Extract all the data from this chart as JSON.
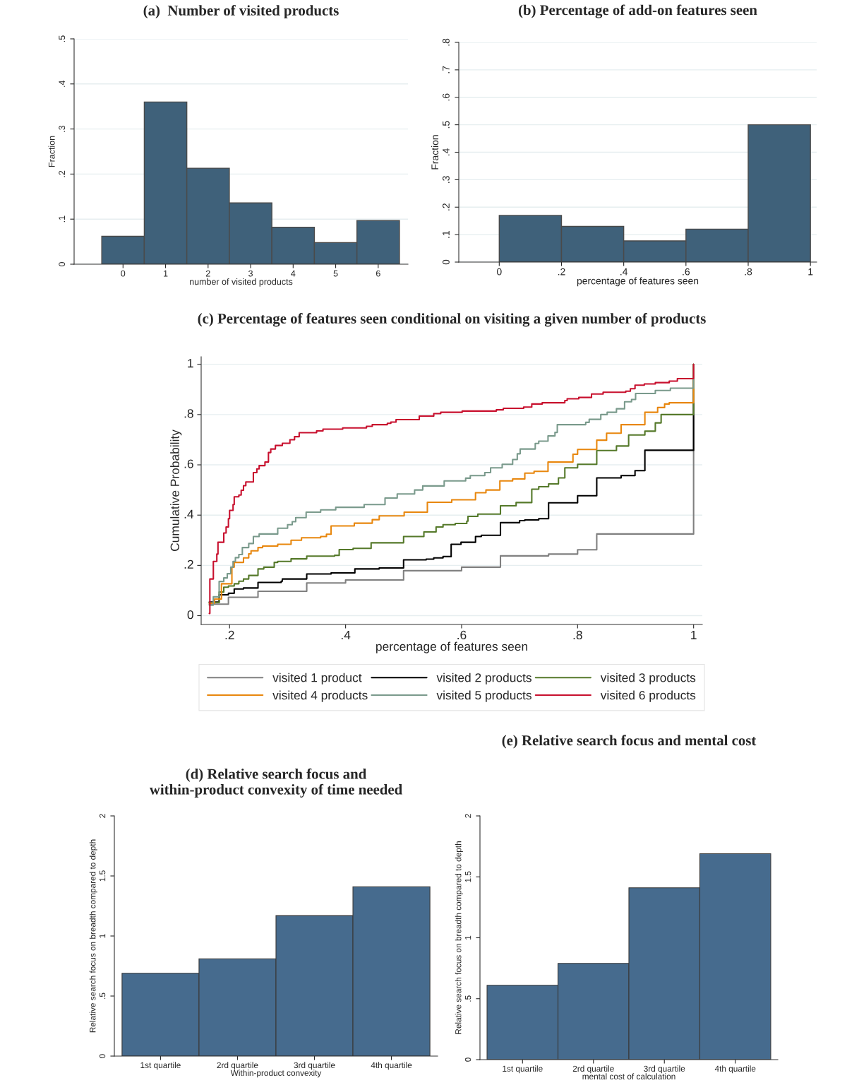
{
  "chart_data": [
    {
      "type": "histogram",
      "title": "(a)  Number of visited products",
      "xlabel": "number of visited products",
      "ylabel": "Fraction",
      "color": "#3f617a",
      "bins": [
        -0.5,
        0.5,
        1.5,
        2.5,
        3.5,
        4.5,
        5.5,
        6.5
      ],
      "values": [
        0.062,
        0.36,
        0.213,
        0.136,
        0.082,
        0.048,
        0.097
      ],
      "xlim": [
        -1.15,
        6.7
      ],
      "xticks": [
        0,
        1,
        2,
        3,
        4,
        5,
        6
      ],
      "ylim": [
        0,
        0.5
      ],
      "yticks": [
        0,
        {
          "value": 0.1,
          "label": ".1"
        },
        {
          "value": 0.2,
          "label": ".2"
        },
        {
          "value": 0.3,
          "label": ".3"
        },
        {
          "value": 0.4,
          "label": ".4"
        },
        {
          "value": 0.5,
          "label": ".5"
        }
      ],
      "grid": "y"
    },
    {
      "type": "histogram",
      "title": "(b) Percentage of add-on features seen",
      "xlabel": "percentage of features seen",
      "ylabel": "Fraction",
      "color": "#3f617a",
      "bins": [
        0,
        0.2,
        0.4,
        0.6,
        0.8,
        1
      ],
      "values": [
        0.17,
        0.13,
        0.077,
        0.12,
        0.5
      ],
      "xlim": [
        -0.13,
        1.02
      ],
      "xticks": [
        0,
        {
          "value": 0.2,
          "label": ".2"
        },
        {
          "value": 0.4,
          "label": ".4"
        },
        {
          "value": 0.6,
          "label": ".6"
        },
        {
          "value": 0.8,
          "label": ".8"
        },
        1
      ],
      "ylim": [
        0,
        0.8
      ],
      "yticks": [
        0,
        {
          "value": 0.1,
          "label": ".1"
        },
        {
          "value": 0.2,
          "label": ".2"
        },
        {
          "value": 0.3,
          "label": ".3"
        },
        {
          "value": 0.4,
          "label": ".4"
        },
        {
          "value": 0.5,
          "label": ".5"
        },
        {
          "value": 0.6,
          "label": ".6"
        },
        {
          "value": 0.7,
          "label": ".7"
        },
        {
          "value": 0.8,
          "label": ".8"
        }
      ],
      "grid": "y"
    },
    {
      "type": "step",
      "title": "(c) Percentage of features seen conditional on visiting a given number of products",
      "xlabel": "percentage of features seen",
      "ylabel": "Cumulative Probability",
      "xlim": [
        0.151,
        1.015
      ],
      "xticks": [
        {
          "value": 0.2,
          "label": ".2"
        },
        {
          "value": 0.4,
          "label": ".4"
        },
        {
          "value": 0.6,
          "label": ".6"
        },
        {
          "value": 0.8,
          "label": ".8"
        },
        1
      ],
      "ylim": [
        -0.035,
        1.03
      ],
      "yticks": [
        0,
        {
          "value": 0.2,
          "label": ".2"
        },
        {
          "value": 0.4,
          "label": ".4"
        },
        {
          "value": 0.6,
          "label": ".6"
        },
        {
          "value": 0.8,
          "label": ".8"
        },
        1
      ],
      "grid": "y",
      "legend": "bottom",
      "series": [
        {
          "name": "visited 1 product",
          "color": "#808080",
          "x": [
            0.165,
            0.198,
            0.249,
            0.333,
            0.4,
            0.5,
            0.6,
            0.667,
            0.75,
            0.8,
            0.833,
            1
          ],
          "values": [
            0.046,
            0.073,
            0.097,
            0.13,
            0.142,
            0.179,
            0.193,
            0.238,
            0.245,
            0.262,
            0.325,
            1
          ]
        },
        {
          "name": "visited 2 products",
          "color": "#000000",
          "x": [
            0.165,
            0.182,
            0.198,
            0.208,
            0.224,
            0.249,
            0.289,
            0.291,
            0.333,
            0.375,
            0.416,
            0.458,
            0.5,
            0.539,
            0.552,
            0.568,
            0.582,
            0.599,
            0.624,
            0.634,
            0.667,
            0.7,
            0.709,
            0.733,
            0.75,
            0.8,
            0.833,
            0.875,
            0.899,
            0.916,
            1
          ],
          "values": [
            0.054,
            0.083,
            0.089,
            0.106,
            0.11,
            0.132,
            0.137,
            0.146,
            0.166,
            0.17,
            0.186,
            0.19,
            0.222,
            0.225,
            0.23,
            0.235,
            0.284,
            0.292,
            0.315,
            0.32,
            0.37,
            0.378,
            0.381,
            0.386,
            0.449,
            0.477,
            0.548,
            0.557,
            0.577,
            0.658,
            1
          ]
        },
        {
          "name": "visited 3 products",
          "color": "#55792a",
          "x": [
            0.165,
            0.182,
            0.19,
            0.198,
            0.208,
            0.216,
            0.224,
            0.233,
            0.249,
            0.259,
            0.277,
            0.283,
            0.306,
            0.333,
            0.381,
            0.389,
            0.413,
            0.444,
            0.5,
            0.535,
            0.556,
            0.568,
            0.589,
            0.609,
            0.611,
            0.628,
            0.667,
            0.694,
            0.721,
            0.733,
            0.75,
            0.767,
            0.778,
            0.8,
            0.833,
            0.867,
            0.888,
            0.916,
            0.934,
            0.944,
            1
          ],
          "values": [
            0.052,
            0.094,
            0.113,
            0.118,
            0.127,
            0.137,
            0.146,
            0.16,
            0.186,
            0.193,
            0.212,
            0.216,
            0.226,
            0.237,
            0.24,
            0.263,
            0.268,
            0.29,
            0.315,
            0.333,
            0.353,
            0.362,
            0.367,
            0.376,
            0.395,
            0.404,
            0.437,
            0.45,
            0.503,
            0.513,
            0.524,
            0.548,
            0.588,
            0.602,
            0.657,
            0.675,
            0.719,
            0.734,
            0.767,
            0.8,
            1
          ]
        },
        {
          "name": "visited 4 products",
          "color": "#e8870e",
          "x": [
            0.165,
            0.174,
            0.186,
            0.204,
            0.208,
            0.224,
            0.233,
            0.237,
            0.249,
            0.257,
            0.283,
            0.306,
            0.324,
            0.357,
            0.367,
            0.375,
            0.415,
            0.446,
            0.458,
            0.501,
            0.541,
            0.583,
            0.624,
            0.642,
            0.666,
            0.688,
            0.709,
            0.725,
            0.749,
            0.792,
            0.8,
            0.833,
            0.85,
            0.875,
            0.916,
            0.938,
            0.95,
            0.958,
            1
          ],
          "values": [
            0.049,
            0.066,
            0.127,
            0.193,
            0.212,
            0.23,
            0.246,
            0.258,
            0.271,
            0.277,
            0.284,
            0.3,
            0.31,
            0.315,
            0.324,
            0.357,
            0.368,
            0.382,
            0.397,
            0.412,
            0.451,
            0.461,
            0.489,
            0.5,
            0.536,
            0.544,
            0.567,
            0.574,
            0.611,
            0.642,
            0.661,
            0.698,
            0.726,
            0.76,
            0.809,
            0.828,
            0.842,
            0.847,
            1
          ]
        },
        {
          "name": "visited 5 products",
          "color": "#7a9a8c",
          "x": [
            0.165,
            0.172,
            0.182,
            0.19,
            0.196,
            0.202,
            0.206,
            0.21,
            0.216,
            0.222,
            0.233,
            0.241,
            0.251,
            0.283,
            0.3,
            0.308,
            0.314,
            0.332,
            0.357,
            0.383,
            0.432,
            0.468,
            0.489,
            0.519,
            0.533,
            0.57,
            0.607,
            0.615,
            0.64,
            0.65,
            0.67,
            0.688,
            0.696,
            0.701,
            0.727,
            0.733,
            0.749,
            0.761,
            0.765,
            0.814,
            0.82,
            0.84,
            0.851,
            0.867,
            0.881,
            0.893,
            0.9,
            0.934,
            0.96,
            1
          ],
          "values": [
            0.042,
            0.075,
            0.136,
            0.15,
            0.167,
            0.193,
            0.216,
            0.231,
            0.243,
            0.271,
            0.287,
            0.315,
            0.325,
            0.348,
            0.362,
            0.374,
            0.39,
            0.412,
            0.421,
            0.431,
            0.442,
            0.468,
            0.484,
            0.5,
            0.516,
            0.536,
            0.547,
            0.557,
            0.569,
            0.588,
            0.602,
            0.621,
            0.644,
            0.663,
            0.685,
            0.694,
            0.715,
            0.729,
            0.76,
            0.769,
            0.781,
            0.8,
            0.809,
            0.823,
            0.851,
            0.86,
            0.884,
            0.896,
            0.905,
            1
          ]
        },
        {
          "name": "visited 6 products",
          "color": "#c8102e",
          "x": [
            0.165,
            0.166,
            0.172,
            0.178,
            0.18,
            0.19,
            0.194,
            0.198,
            0.2,
            0.206,
            0.208,
            0.216,
            0.22,
            0.224,
            0.228,
            0.241,
            0.247,
            0.251,
            0.261,
            0.267,
            0.271,
            0.279,
            0.291,
            0.304,
            0.312,
            0.32,
            0.35,
            0.361,
            0.395,
            0.436,
            0.446,
            0.472,
            0.478,
            0.487,
            0.527,
            0.552,
            0.564,
            0.601,
            0.66,
            0.672,
            0.707,
            0.721,
            0.739,
            0.778,
            0.782,
            0.802,
            0.824,
            0.844,
            0.883,
            0.891,
            0.899,
            0.915,
            0.934,
            0.958,
            0.972,
            1
          ],
          "values": [
            0.009,
            0.146,
            0.216,
            0.245,
            0.292,
            0.329,
            0.353,
            0.386,
            0.419,
            0.442,
            0.473,
            0.48,
            0.499,
            0.517,
            0.532,
            0.569,
            0.584,
            0.597,
            0.611,
            0.649,
            0.663,
            0.677,
            0.686,
            0.7,
            0.712,
            0.728,
            0.735,
            0.742,
            0.747,
            0.753,
            0.76,
            0.765,
            0.77,
            0.78,
            0.794,
            0.804,
            0.809,
            0.814,
            0.819,
            0.825,
            0.83,
            0.842,
            0.847,
            0.856,
            0.863,
            0.868,
            0.882,
            0.889,
            0.893,
            0.903,
            0.917,
            0.922,
            0.927,
            0.933,
            0.943,
            1
          ]
        }
      ]
    },
    {
      "type": "bar",
      "title": "(d) Relative search focus and\nwithin-product convexity of time needed",
      "xlabel": "Within-product convexity",
      "ylabel": "Relative search focus on breadth compared to depth",
      "color": "#466b8e",
      "categories": [
        "1st quartile",
        "2rd quartile",
        "3rd quartile",
        "4th quartile"
      ],
      "values": [
        0.69,
        0.81,
        1.17,
        1.41
      ],
      "ylim": [
        0,
        2
      ],
      "yticks": [
        0,
        {
          "value": 0.5,
          "label": ".5"
        },
        1,
        1.5,
        2
      ]
    },
    {
      "type": "bar",
      "title": "(e) Relative search focus and mental cost",
      "xlabel": "mental cost of calculation",
      "ylabel": "Relative search focus on breadth compared to depth",
      "color": "#466b8e",
      "categories": [
        "1st quartile",
        "2rd quartile",
        "3rd quartile",
        "4th quartile"
      ],
      "values": [
        0.61,
        0.79,
        1.41,
        1.69
      ],
      "ylim": [
        0,
        2
      ],
      "yticks": [
        0,
        {
          "value": 0.5,
          "label": ".5"
        },
        1,
        1.5,
        2
      ]
    }
  ]
}
